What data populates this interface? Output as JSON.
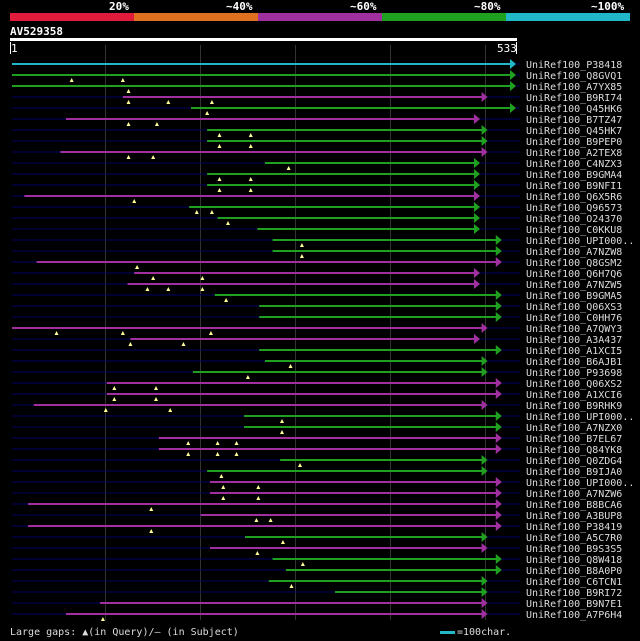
{
  "header": {
    "scale": [
      {
        "label": "20%",
        "color": "#e01b3c"
      },
      {
        "label": "~40%",
        "color": "#e07020"
      },
      {
        "label": "~60%",
        "color": "#a030a0"
      },
      {
        "label": "~80%",
        "color": "#20a020"
      },
      {
        "label": "~100%",
        "color": "#20b8c8"
      }
    ],
    "query_name": "AV529358",
    "query_start": "1",
    "query_end": "533"
  },
  "colors": {
    "green": "#20a020",
    "magenta": "#a030a0",
    "cyan": "#20b8c8",
    "line": "#000066"
  },
  "hits": [
    {
      "label": "UniRef100_P38418",
      "start": 1,
      "end": 533,
      "color": "cyan",
      "marks": []
    },
    {
      "label": "UniRef100_Q8GVQ1",
      "start": 1,
      "end": 533,
      "color": "green",
      "marks": [
        64,
        118
      ]
    },
    {
      "label": "UniRef100_A7YX85",
      "start": 1,
      "end": 533,
      "color": "green",
      "marks": [
        124
      ]
    },
    {
      "label": "UniRef100_B9RI74",
      "start": 118,
      "end": 503,
      "color": "magenta",
      "marks": [
        124,
        166,
        212
      ]
    },
    {
      "label": "UniRef100_Q45HK6",
      "start": 190,
      "end": 533,
      "color": "green",
      "marks": [
        207
      ]
    },
    {
      "label": "UniRef100_B7TZ47",
      "start": 58,
      "end": 495,
      "color": "magenta",
      "marks": [
        124,
        154
      ]
    },
    {
      "label": "UniRef100_Q45HK7",
      "start": 207,
      "end": 503,
      "color": "green",
      "marks": [
        220,
        253
      ]
    },
    {
      "label": "UniRef100_B9PEP0",
      "start": 207,
      "end": 503,
      "color": "green",
      "marks": [
        220,
        253
      ]
    },
    {
      "label": "UniRef100_A2TEX8",
      "start": 52,
      "end": 503,
      "color": "magenta",
      "marks": [
        124,
        150
      ]
    },
    {
      "label": "UniRef100_C4NZX3",
      "start": 268,
      "end": 495,
      "color": "green",
      "marks": [
        293
      ]
    },
    {
      "label": "UniRef100_B9GMA4",
      "start": 207,
      "end": 495,
      "color": "green",
      "marks": [
        220,
        253
      ]
    },
    {
      "label": "UniRef100_B9NFI1",
      "start": 207,
      "end": 495,
      "color": "green",
      "marks": [
        220,
        253
      ]
    },
    {
      "label": "UniRef100_Q6X5R6",
      "start": 14,
      "end": 495,
      "color": "magenta",
      "marks": [
        130
      ]
    },
    {
      "label": "UniRef100_Q96573",
      "start": 188,
      "end": 495,
      "color": "green",
      "marks": [
        196,
        212
      ]
    },
    {
      "label": "UniRef100_O24370",
      "start": 218,
      "end": 495,
      "color": "green",
      "marks": [
        229
      ]
    },
    {
      "label": "UniRef100_C0KKU8",
      "start": 260,
      "end": 495,
      "color": "green",
      "marks": []
    },
    {
      "label": "UniRef100_UPI000..",
      "start": 276,
      "end": 518,
      "color": "green",
      "marks": [
        307
      ]
    },
    {
      "label": "UniRef100_A7NZW8",
      "start": 276,
      "end": 518,
      "color": "green",
      "marks": [
        307
      ]
    },
    {
      "label": "UniRef100_Q8GSM2",
      "start": 27,
      "end": 518,
      "color": "magenta",
      "marks": [
        133
      ]
    },
    {
      "label": "UniRef100_Q6H7Q6",
      "start": 130,
      "end": 495,
      "color": "magenta",
      "marks": [
        150,
        202
      ]
    },
    {
      "label": "UniRef100_A7NZW5",
      "start": 123,
      "end": 495,
      "color": "magenta",
      "marks": [
        144,
        166,
        202
      ]
    },
    {
      "label": "UniRef100_B9GMA5",
      "start": 215,
      "end": 518,
      "color": "green",
      "marks": [
        227
      ]
    },
    {
      "label": "UniRef100_Q06XS3",
      "start": 262,
      "end": 518,
      "color": "green",
      "marks": []
    },
    {
      "label": "UniRef100_C0HH76",
      "start": 262,
      "end": 518,
      "color": "green",
      "marks": []
    },
    {
      "label": "UniRef100_A7QWY3",
      "start": 1,
      "end": 503,
      "color": "magenta",
      "marks": [
        48,
        118,
        211
      ]
    },
    {
      "label": "UniRef100_A3A437",
      "start": 126,
      "end": 495,
      "color": "magenta",
      "marks": [
        126,
        182
      ]
    },
    {
      "label": "UniRef100_A1XCI5",
      "start": 262,
      "end": 518,
      "color": "green",
      "marks": []
    },
    {
      "label": "UniRef100_B6AJB1",
      "start": 268,
      "end": 503,
      "color": "green",
      "marks": [
        295
      ]
    },
    {
      "label": "UniRef100_P93698",
      "start": 192,
      "end": 503,
      "color": "green",
      "marks": [
        250
      ]
    },
    {
      "label": "UniRef100_Q06XS2",
      "start": 101,
      "end": 518,
      "color": "magenta",
      "marks": [
        109,
        153
      ]
    },
    {
      "label": "UniRef100_A1XCI6",
      "start": 101,
      "end": 518,
      "color": "magenta",
      "marks": [
        109,
        153
      ]
    },
    {
      "label": "UniRef100_B9RHK9",
      "start": 24,
      "end": 503,
      "color": "magenta",
      "marks": [
        100,
        168
      ]
    },
    {
      "label": "UniRef100_UPI000..",
      "start": 246,
      "end": 518,
      "color": "green",
      "marks": [
        286
      ]
    },
    {
      "label": "UniRef100_A7NZX0",
      "start": 246,
      "end": 518,
      "color": "green",
      "marks": [
        286
      ]
    },
    {
      "label": "UniRef100_B7EL67",
      "start": 156,
      "end": 518,
      "color": "magenta",
      "marks": [
        187,
        218,
        238
      ]
    },
    {
      "label": "UniRef100_Q84YK8",
      "start": 156,
      "end": 518,
      "color": "magenta",
      "marks": [
        187,
        218,
        238
      ]
    },
    {
      "label": "UniRef100_Q0ZDG4",
      "start": 284,
      "end": 503,
      "color": "green",
      "marks": [
        305
      ]
    },
    {
      "label": "UniRef100_B9IJA0",
      "start": 207,
      "end": 503,
      "color": "green",
      "marks": [
        222
      ]
    },
    {
      "label": "UniRef100_UPI000..",
      "start": 210,
      "end": 518,
      "color": "magenta",
      "marks": [
        224,
        261
      ]
    },
    {
      "label": "UniRef100_A7NZW6",
      "start": 210,
      "end": 518,
      "color": "magenta",
      "marks": [
        224,
        261
      ]
    },
    {
      "label": "UniRef100_B8BCA6",
      "start": 18,
      "end": 518,
      "color": "magenta",
      "marks": [
        148
      ]
    },
    {
      "label": "UniRef100_A3BUP8",
      "start": 200,
      "end": 518,
      "color": "magenta",
      "marks": [
        259,
        274
      ]
    },
    {
      "label": "UniRef100_P38419",
      "start": 18,
      "end": 518,
      "color": "magenta",
      "marks": [
        148
      ]
    },
    {
      "label": "UniRef100_A5C7R0",
      "start": 247,
      "end": 503,
      "color": "green",
      "marks": [
        287
      ]
    },
    {
      "label": "UniRef100_B9S3S5",
      "start": 210,
      "end": 503,
      "color": "magenta",
      "marks": [
        260
      ]
    },
    {
      "label": "UniRef100_Q8W418",
      "start": 276,
      "end": 518,
      "color": "green",
      "marks": [
        308
      ]
    },
    {
      "label": "UniRef100_B8A0P0",
      "start": 290,
      "end": 518,
      "color": "green",
      "marks": []
    },
    {
      "label": "UniRef100_C6TCN1",
      "start": 272,
      "end": 503,
      "color": "green",
      "marks": [
        296
      ]
    },
    {
      "label": "UniRef100_B9RI72",
      "start": 342,
      "end": 503,
      "color": "green",
      "marks": []
    },
    {
      "label": "UniRef100_B9N7E1",
      "start": 94,
      "end": 503,
      "color": "magenta",
      "marks": []
    },
    {
      "label": "UniRef100_A7P6H4",
      "start": 58,
      "end": 503,
      "color": "magenta",
      "marks": [
        97
      ]
    }
  ],
  "legend": {
    "gaps": "Large gaps: ▲(in Query)/– (in Subject)",
    "scale": "=100char."
  }
}
